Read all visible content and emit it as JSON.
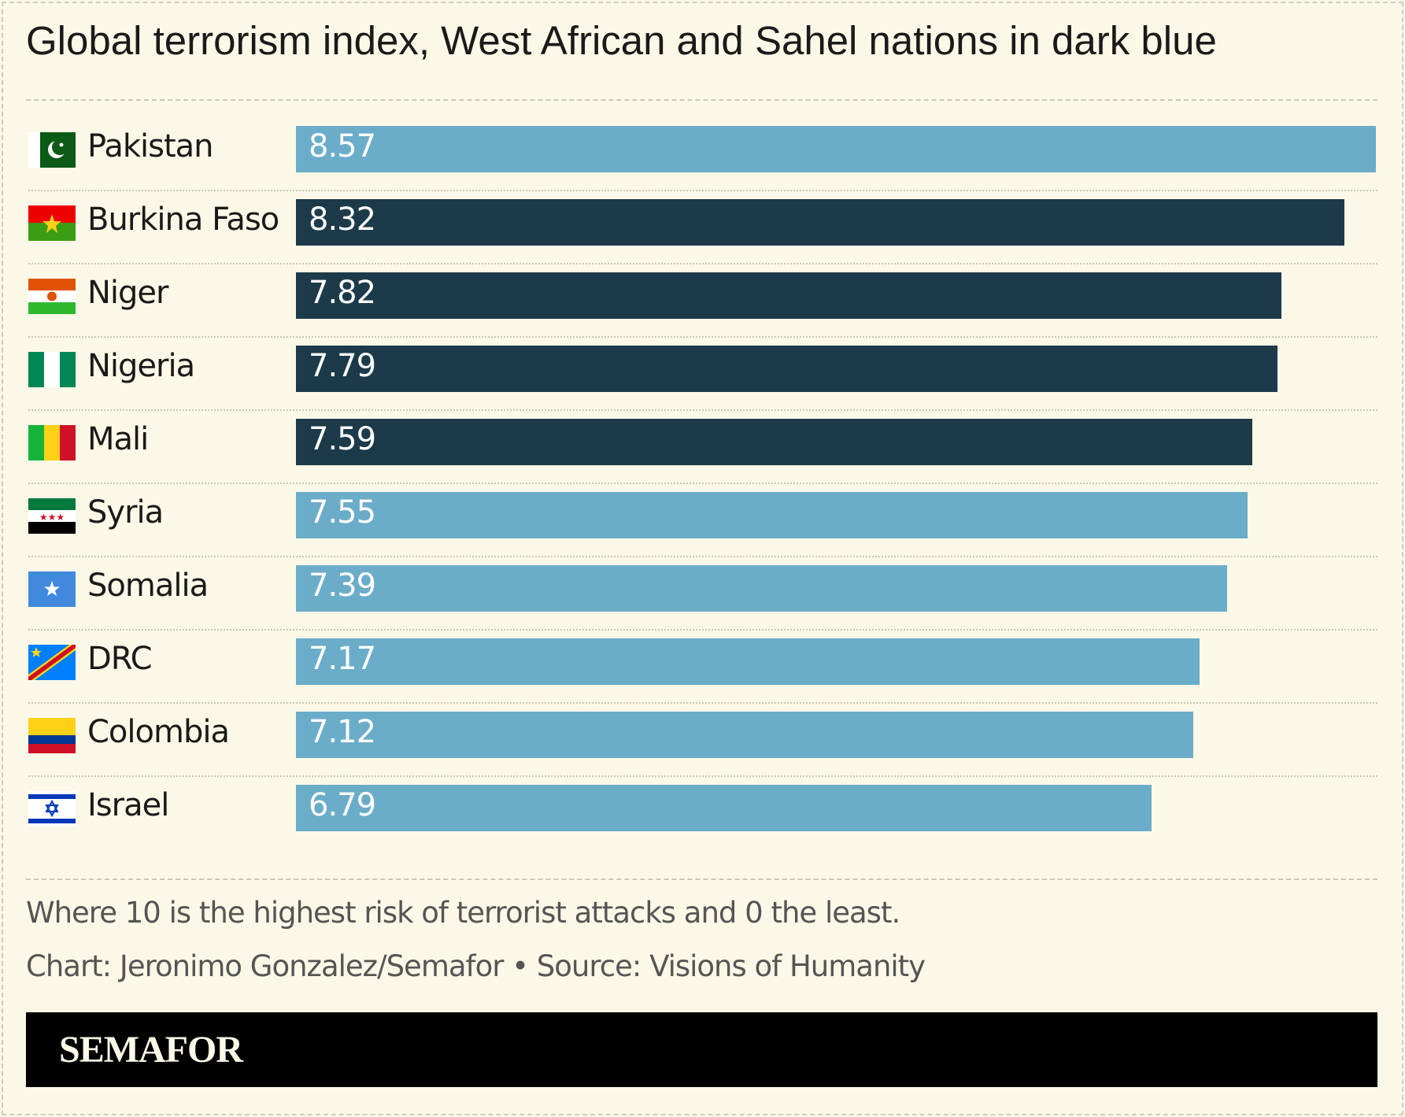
{
  "chart_data": {
    "type": "bar",
    "orientation": "horizontal",
    "title": "Global terrorism index, West African and Sahel nations in dark blue",
    "categories": [
      "Pakistan",
      "Burkina Faso",
      "Niger",
      "Nigeria",
      "Mali",
      "Syria",
      "Somalia",
      "DRC",
      "Colombia",
      "Israel"
    ],
    "values": [
      8.57,
      8.32,
      7.82,
      7.79,
      7.59,
      7.55,
      7.39,
      7.17,
      7.12,
      6.79
    ],
    "highlighted": [
      false,
      true,
      true,
      true,
      true,
      false,
      false,
      false,
      false,
      false
    ],
    "flags": [
      "pakistan-flag",
      "burkina-faso-flag",
      "niger-flag",
      "nigeria-flag",
      "mali-flag",
      "syria-flag",
      "somalia-flag",
      "drc-flag",
      "colombia-flag",
      "israel-flag"
    ],
    "xlim": [
      0,
      8.57
    ],
    "grid": false,
    "colors": {
      "default": "#6badc9",
      "highlight": "#1d3a4a"
    },
    "note": "Where 10 is the highest risk of terrorist attacks and 0 the least.",
    "credit": "Chart: Jeronimo Gonzalez/Semafor • Source: Visions of Humanity"
  },
  "brand": "SEMAFOR"
}
